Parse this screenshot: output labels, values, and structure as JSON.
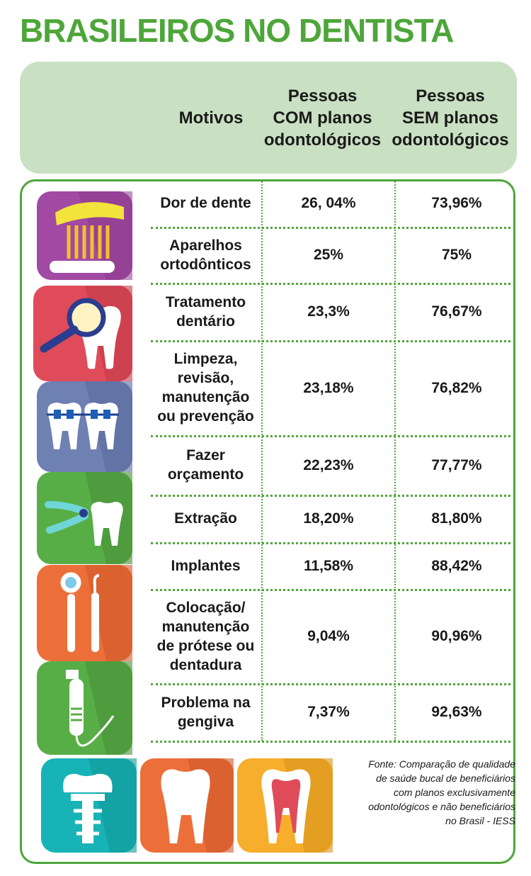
{
  "title": "BRASILEIROS NO DENTISTA",
  "header": {
    "motivos": "Motivos",
    "com": "Pessoas\nCOM planos\nodontológicos",
    "sem": "Pessoas\nSEM planos\nodontológicos"
  },
  "rows": [
    {
      "motivo": "Dor de dente",
      "com": "26, 04%",
      "sem": "73,96%"
    },
    {
      "motivo": "Aparelhos\nortodônticos",
      "com": "25%",
      "sem": "75%"
    },
    {
      "motivo": "Tratamento\ndentário",
      "com": "23,3%",
      "sem": "76,67%"
    },
    {
      "motivo": "Limpeza,\nrevisão,\nmanutenção\nou prevenção",
      "com": "23,18%",
      "sem": "76,82%"
    },
    {
      "motivo": "Fazer\norçamento",
      "com": "22,23%",
      "sem": "77,77%"
    },
    {
      "motivo": "Extração",
      "com": "18,20%",
      "sem": "81,80%"
    },
    {
      "motivo": "Implantes",
      "com": "11,58%",
      "sem": "88,42%"
    },
    {
      "motivo": "Colocação/\nmanutenção\nde prótese ou\ndentadura",
      "com": "9,04%",
      "sem": "90,96%"
    },
    {
      "motivo": "Problema na\ngengiva",
      "com": "7,37%",
      "sem": "92,63%"
    }
  ],
  "source": "Fonte: Comparação de qualidade\nde saúde bucal de beneficiários\ncom planos exclusivamente\nodontológicos e não beneficiários\nno Brasil - IESS",
  "icons": [
    {
      "name": "toothbrush-icon",
      "color": "#a24aa3"
    },
    {
      "name": "dental-mirror-tooth-icon",
      "color": "#e04b5a"
    },
    {
      "name": "braces-icon",
      "color": "#6f80b3"
    },
    {
      "name": "extraction-pliers-icon",
      "color": "#58ae46"
    },
    {
      "name": "dental-tools-icon",
      "color": "#ec6f3a"
    },
    {
      "name": "dental-drill-icon",
      "color": "#58ae46"
    },
    {
      "name": "implant-icon",
      "color": "#18b3b6"
    },
    {
      "name": "tooth-icon",
      "color": "#ec6f3a"
    },
    {
      "name": "tooth-cross-section-icon",
      "color": "#f6ae2c"
    }
  ],
  "colors": {
    "accent": "#4ea63a",
    "header_bg": "#c9e0c2"
  }
}
